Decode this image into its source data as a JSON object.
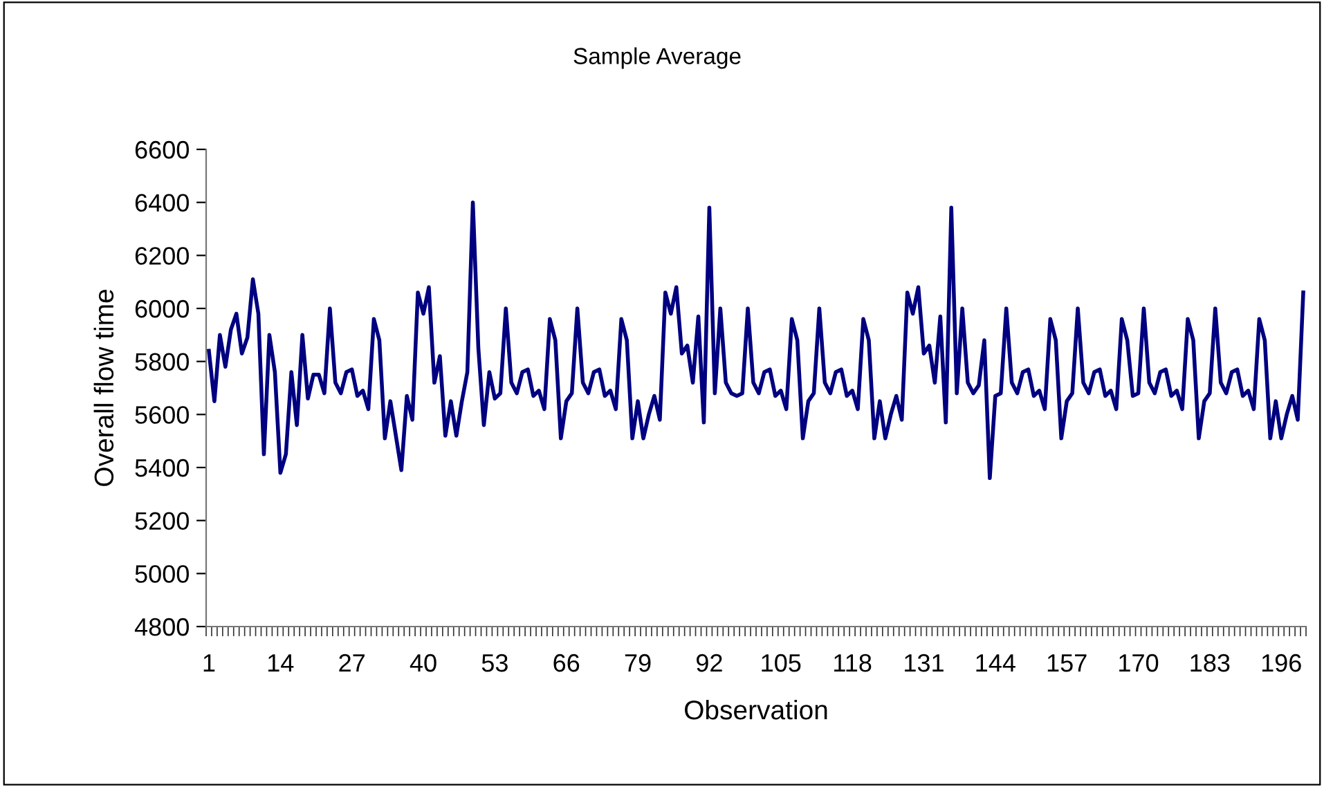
{
  "chart_data": {
    "type": "line",
    "title": "Sample Average",
    "xlabel": "Observation",
    "ylabel": "Overall flow time",
    "categories": [
      "1",
      null,
      null,
      null,
      null,
      null,
      null,
      null,
      null,
      null,
      null,
      null,
      null,
      "14",
      null,
      null,
      null,
      null,
      null,
      null,
      null,
      null,
      null,
      null,
      null,
      null,
      "27",
      null,
      null,
      null,
      null,
      null,
      null,
      null,
      null,
      null,
      null,
      null,
      null,
      "40",
      null,
      null,
      null,
      null,
      null,
      null,
      null,
      null,
      null,
      null,
      null,
      null,
      "53",
      null,
      null,
      null,
      null,
      null,
      null,
      null,
      null,
      null,
      null,
      null,
      null,
      "66",
      null,
      null,
      null,
      null,
      null,
      null,
      null,
      null,
      null,
      null,
      null,
      null,
      "79",
      null,
      null,
      null,
      null,
      null,
      null,
      null,
      null,
      null,
      null,
      null,
      null,
      "92",
      null,
      null,
      null,
      null,
      null,
      null,
      null,
      null,
      null,
      null,
      null,
      null,
      "105",
      null,
      null,
      null,
      null,
      null,
      null,
      null,
      null,
      null,
      null,
      null,
      null,
      "118",
      null,
      null,
      null,
      null,
      null,
      null,
      null,
      null,
      null,
      null,
      null,
      null,
      "131",
      null,
      null,
      null,
      null,
      null,
      null,
      null,
      null,
      null,
      null,
      null,
      null,
      "144",
      null,
      null,
      null,
      null,
      null,
      null,
      null,
      null,
      null,
      null,
      null,
      null,
      "157",
      null,
      null,
      null,
      null,
      null,
      null,
      null,
      null,
      null,
      null,
      null,
      null,
      "170",
      null,
      null,
      null,
      null,
      null,
      null,
      null,
      null,
      null,
      null,
      null,
      null,
      "183",
      null,
      null,
      null,
      null,
      null,
      null,
      null,
      null,
      null,
      null,
      null,
      null,
      "196",
      null,
      null,
      null,
      null
    ],
    "series": [
      {
        "color": "#000080",
        "values": [
          5840,
          5650,
          5900,
          5780,
          5920,
          5980,
          5830,
          5890,
          6110,
          5980,
          5450,
          5900,
          5760,
          5380,
          5450,
          5760,
          5560,
          5900,
          5660,
          5750,
          5750,
          5680,
          6000,
          5720,
          5680,
          5760,
          5770,
          5670,
          5690,
          5620,
          5960,
          5880,
          5510,
          5650,
          5520,
          5390,
          5670,
          5580,
          6060,
          5980,
          6080,
          5720,
          5820,
          5520,
          5650,
          5520,
          5650,
          5760,
          6400,
          5850,
          5560,
          5760,
          5660,
          5680,
          6000,
          5720,
          5680,
          5760,
          5770,
          5670,
          5690,
          5620,
          5960,
          5880,
          5510,
          5650,
          5680,
          6000,
          5720,
          5680,
          5760,
          5770,
          5670,
          5690,
          5620,
          5960,
          5880,
          5510,
          5650,
          5510,
          5600,
          5670,
          5580,
          6060,
          5980,
          6080,
          5830,
          5860,
          5720,
          5970,
          5570,
          6380,
          5680,
          6000,
          5720,
          5680,
          5670,
          5680,
          6000,
          5720,
          5680,
          5760,
          5770,
          5670,
          5690,
          5620,
          5960,
          5880,
          5510,
          5650,
          5680,
          6000,
          5720,
          5680,
          5760,
          5770,
          5670,
          5690,
          5620,
          5960,
          5880,
          5510,
          5650,
          5510,
          5600,
          5670,
          5580,
          6060,
          5980,
          6080,
          5830,
          5860,
          5720,
          5970,
          5570,
          6380,
          5680,
          6000,
          5720,
          5680,
          5710,
          5880,
          5360,
          5670,
          5680,
          6000,
          5720,
          5680,
          5760,
          5770,
          5670,
          5690,
          5620,
          5960,
          5880,
          5510,
          5650,
          5680,
          6000,
          5720,
          5680,
          5760,
          5770,
          5670,
          5690,
          5620,
          5960,
          5880,
          5670,
          5680,
          6000,
          5720,
          5680,
          5760,
          5770,
          5670,
          5690,
          5620,
          5960,
          5880,
          5510,
          5650,
          5680,
          6000,
          5720,
          5680,
          5760,
          5770,
          5670,
          5690,
          5620,
          5960,
          5880,
          5510,
          5650,
          5510,
          5600,
          5670,
          5580,
          6060
        ]
      }
    ],
    "ylim": [
      4800,
      6600
    ],
    "yticks": [
      4800,
      5000,
      5200,
      5400,
      5600,
      5800,
      6000,
      6200,
      6400,
      6600
    ],
    "grid": false
  }
}
